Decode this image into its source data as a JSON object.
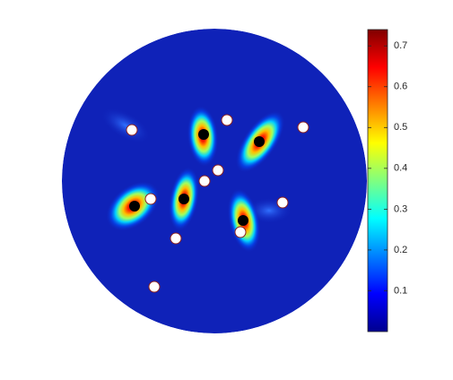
{
  "chart_data": {
    "type": "heatmap",
    "colorbar": {
      "clim": [
        0,
        0.74
      ],
      "ticks": [
        0.1,
        0.2,
        0.3,
        0.4,
        0.5,
        0.6,
        0.7
      ],
      "colormap": "jet"
    }
  }
}
